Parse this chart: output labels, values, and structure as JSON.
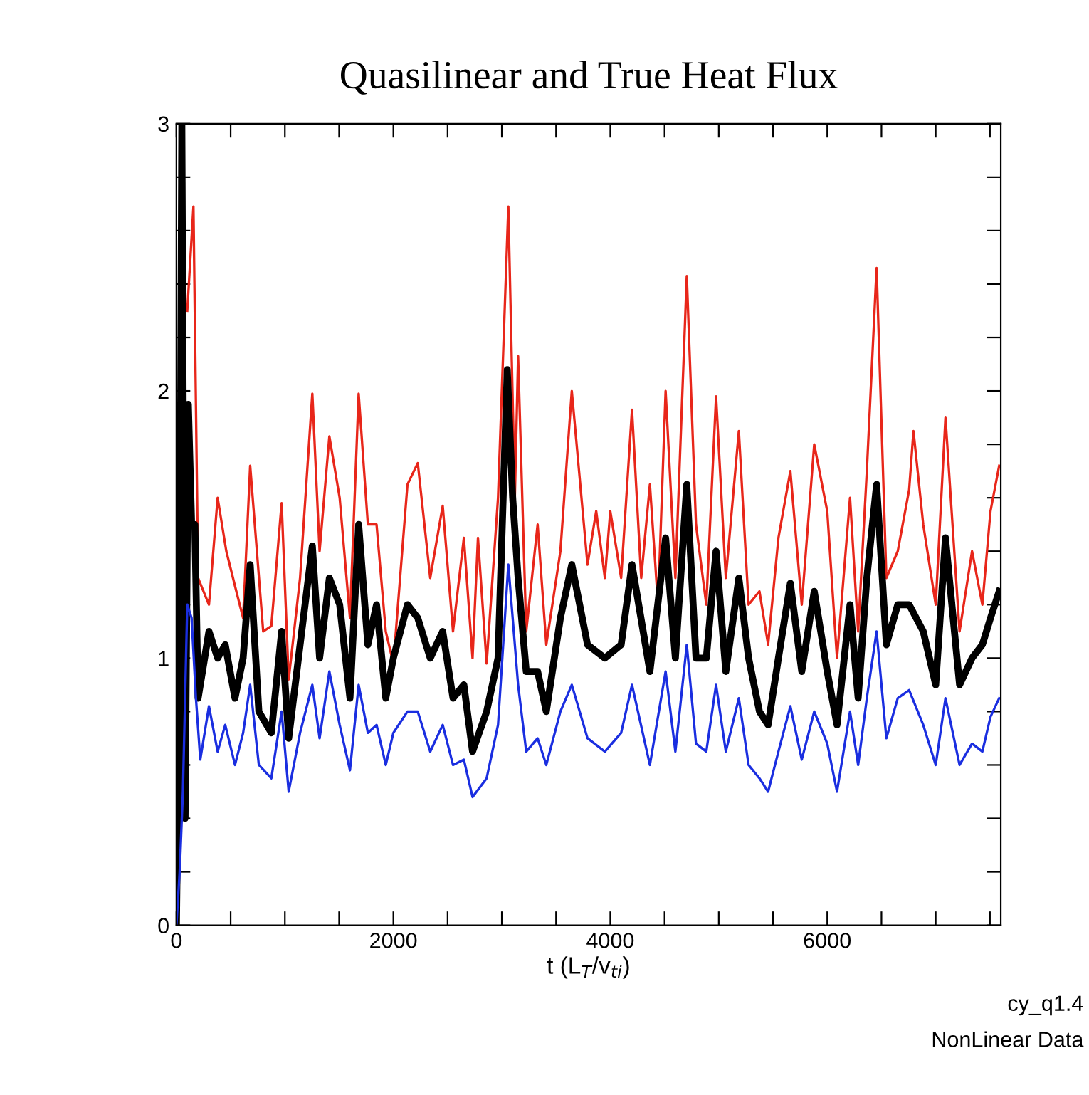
{
  "chart_data": {
    "type": "line",
    "title": "Quasilinear and True Heat Flux",
    "xlabel": "t (L$_{T}$/v$_{ti}$)",
    "xlim": [
      0,
      7600
    ],
    "ylim": [
      0,
      3
    ],
    "xticks": [
      0,
      {
        "value": 500,
        "label": null
      },
      2000,
      {
        "value": 1000,
        "label": null
      },
      {
        "value": 1500,
        "label": null
      },
      {
        "value": 2500,
        "label": null
      },
      {
        "value": 3000,
        "label": null
      },
      {
        "value": 3500,
        "label": null
      },
      4000,
      {
        "value": 4500,
        "label": null
      },
      {
        "value": 5000,
        "label": null
      },
      {
        "value": 5500,
        "label": null
      },
      6000,
      {
        "value": 6500,
        "label": null
      },
      {
        "value": 7000,
        "label": null
      },
      {
        "value": 7500,
        "label": null
      }
    ],
    "yticks": [
      0,
      1,
      2,
      3,
      {
        "value": 0.2,
        "label": null
      },
      {
        "value": 0.4,
        "label": null
      },
      {
        "value": 0.6,
        "label": null
      },
      {
        "value": 0.8,
        "label": null
      },
      {
        "value": 1.2,
        "label": null
      },
      {
        "value": 1.4,
        "label": null
      },
      {
        "value": 1.6,
        "label": null
      },
      {
        "value": 1.8,
        "label": null
      },
      {
        "value": 2.2,
        "label": null
      },
      {
        "value": 2.4,
        "label": null
      },
      {
        "value": 2.6,
        "label": null
      },
      {
        "value": 2.8,
        "label": null
      }
    ],
    "grid": false,
    "legend": false,
    "annotations": [
      "cy_q1.4",
      "NonLinear Data"
    ],
    "series": [
      {
        "color": "#e8261a",
        "x": [
          100,
          157,
          200,
          300,
          380,
          460,
          540,
          615,
          680,
          800,
          875,
          970,
          1035,
          1140,
          1253,
          1320,
          1410,
          1505,
          1600,
          1680,
          1765,
          1845,
          1930,
          2000,
          2130,
          2225,
          2340,
          2455,
          2550,
          2650,
          2730,
          2780,
          2860,
          2965,
          3060,
          3120,
          3150,
          3225,
          3330,
          3410,
          3540,
          3645,
          3790,
          3870,
          3950,
          4000,
          4100,
          4200,
          4285,
          4365,
          4440,
          4510,
          4600,
          4705,
          4790,
          4885,
          4975,
          5065,
          5185,
          5275,
          5375,
          5455,
          5550,
          5660,
          5765,
          5880,
          6000,
          6090,
          6210,
          6285,
          6365,
          6455,
          6545,
          6650,
          6755,
          6795,
          6885,
          7000,
          7090,
          7220,
          7335,
          7430,
          7505,
          7585
        ],
        "values": [
          2.3,
          2.69,
          1.3,
          1.2,
          1.6,
          1.4,
          1.27,
          1.15,
          1.72,
          1.1,
          1.12,
          1.58,
          0.92,
          1.3,
          1.99,
          1.4,
          1.83,
          1.6,
          1.15,
          1.99,
          1.5,
          1.5,
          1.1,
          0.98,
          1.65,
          1.73,
          1.3,
          1.57,
          1.1,
          1.45,
          1.0,
          1.45,
          0.98,
          1.6,
          2.69,
          1.6,
          2.13,
          1.1,
          1.5,
          1.05,
          1.4,
          2.0,
          1.35,
          1.55,
          1.3,
          1.55,
          1.3,
          1.93,
          1.3,
          1.65,
          1.2,
          2.0,
          1.3,
          2.43,
          1.5,
          1.2,
          1.98,
          1.3,
          1.85,
          1.2,
          1.25,
          1.05,
          1.45,
          1.7,
          1.2,
          1.8,
          1.55,
          1.0,
          1.6,
          1.1,
          1.7,
          2.46,
          1.3,
          1.4,
          1.63,
          1.85,
          1.5,
          1.2,
          1.9,
          1.1,
          1.4,
          1.2,
          1.55,
          1.72
        ]
      },
      {
        "color": "#000000",
        "x": [
          0,
          30,
          50,
          80,
          110,
          140,
          170,
          200,
          300,
          380,
          450,
          540,
          615,
          680,
          760,
          875,
          970,
          1035,
          1140,
          1253,
          1320,
          1410,
          1505,
          1600,
          1680,
          1765,
          1845,
          1930,
          2000,
          2130,
          2225,
          2340,
          2455,
          2550,
          2650,
          2730,
          2860,
          2965,
          3050,
          3100,
          3150,
          3225,
          3330,
          3410,
          3540,
          3645,
          3790,
          3950,
          4100,
          4200,
          4365,
          4510,
          4600,
          4705,
          4790,
          4885,
          4975,
          5065,
          5185,
          5275,
          5375,
          5455,
          5550,
          5660,
          5765,
          5880,
          6000,
          6090,
          6210,
          6285,
          6365,
          6455,
          6545,
          6650,
          6755,
          6885,
          7000,
          7090,
          7220,
          7335,
          7430,
          7505,
          7585
        ],
        "values": [
          0,
          1.0,
          3.0,
          0.4,
          1.95,
          1.5,
          1.5,
          0.85,
          1.1,
          1.0,
          1.05,
          0.85,
          1.0,
          1.35,
          0.8,
          0.72,
          1.1,
          0.7,
          1.05,
          1.42,
          1.0,
          1.3,
          1.2,
          0.85,
          1.5,
          1.05,
          1.2,
          0.85,
          1.0,
          1.2,
          1.15,
          1.0,
          1.1,
          0.85,
          0.9,
          0.65,
          0.8,
          1.0,
          2.08,
          1.6,
          1.3,
          0.95,
          0.95,
          0.8,
          1.15,
          1.35,
          1.05,
          1.0,
          1.05,
          1.35,
          0.95,
          1.45,
          1.0,
          1.65,
          1.0,
          1.0,
          1.4,
          0.95,
          1.3,
          1.0,
          0.8,
          0.75,
          1.0,
          1.28,
          0.95,
          1.25,
          0.95,
          0.75,
          1.2,
          0.85,
          1.3,
          1.65,
          1.05,
          1.2,
          1.2,
          1.1,
          0.9,
          1.45,
          0.9,
          1.0,
          1.05,
          1.15,
          1.25
        ]
      },
      {
        "color": "#1a2ee0",
        "x": [
          0,
          30,
          60,
          100,
          140,
          180,
          220,
          300,
          380,
          450,
          540,
          615,
          680,
          760,
          875,
          970,
          1035,
          1140,
          1253,
          1320,
          1410,
          1505,
          1600,
          1680,
          1765,
          1845,
          1930,
          2000,
          2130,
          2225,
          2340,
          2455,
          2550,
          2650,
          2730,
          2860,
          2965,
          3060,
          3150,
          3225,
          3330,
          3410,
          3540,
          3645,
          3790,
          3950,
          4100,
          4200,
          4365,
          4510,
          4600,
          4705,
          4790,
          4885,
          4975,
          5065,
          5185,
          5275,
          5375,
          5455,
          5550,
          5660,
          5765,
          5880,
          6000,
          6090,
          6210,
          6285,
          6365,
          6455,
          6545,
          6650,
          6755,
          6885,
          7000,
          7090,
          7220,
          7335,
          7430,
          7505,
          7585
        ],
        "values": [
          0,
          0.2,
          0.5,
          1.2,
          1.15,
          0.85,
          0.62,
          0.82,
          0.65,
          0.75,
          0.6,
          0.72,
          0.9,
          0.6,
          0.55,
          0.8,
          0.5,
          0.72,
          0.9,
          0.7,
          0.95,
          0.75,
          0.58,
          0.9,
          0.72,
          0.75,
          0.6,
          0.72,
          0.8,
          0.8,
          0.65,
          0.75,
          0.6,
          0.62,
          0.48,
          0.55,
          0.75,
          1.35,
          0.9,
          0.65,
          0.7,
          0.6,
          0.8,
          0.9,
          0.7,
          0.65,
          0.72,
          0.9,
          0.6,
          0.95,
          0.65,
          1.05,
          0.68,
          0.65,
          0.9,
          0.65,
          0.85,
          0.6,
          0.55,
          0.5,
          0.65,
          0.82,
          0.62,
          0.8,
          0.68,
          0.5,
          0.8,
          0.6,
          0.85,
          1.1,
          0.7,
          0.85,
          0.88,
          0.75,
          0.6,
          0.85,
          0.6,
          0.68,
          0.65,
          0.78,
          0.85
        ]
      }
    ]
  }
}
